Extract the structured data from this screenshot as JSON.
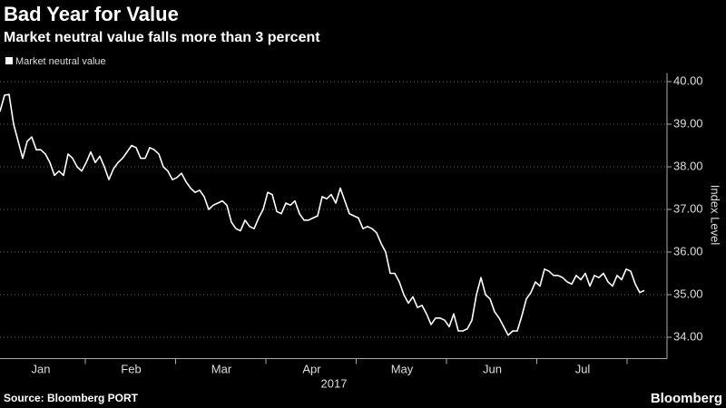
{
  "chart_data": {
    "type": "line",
    "title": "Bad Year for Value",
    "subtitle": "Market neutral value falls more than 3 percent",
    "y_label": "Index Level",
    "x_label": "2017",
    "xtick_labels": [
      "Jan",
      "Feb",
      "Mar",
      "Apr",
      "May",
      "Jun",
      "Jul"
    ],
    "source": "Source: Bloomberg PORT",
    "brand": "Bloomberg",
    "ylim": [
      33.5,
      40.2
    ],
    "yticks": [
      {
        "value": 34,
        "label": "34.00"
      },
      {
        "value": 35,
        "label": "35.00"
      },
      {
        "value": 36,
        "label": "36.00"
      },
      {
        "value": 37,
        "label": "37.00"
      },
      {
        "value": 38,
        "label": "38.00"
      },
      {
        "value": 39,
        "label": "39.00"
      },
      {
        "value": 40,
        "label": "40.00"
      }
    ],
    "grid": true,
    "series": [
      {
        "name": "Market neutral value",
        "color": "#ffffff",
        "values": [
          39.3,
          39.68,
          39.7,
          39.0,
          38.6,
          38.2,
          38.6,
          38.7,
          38.4,
          38.4,
          38.3,
          38.1,
          37.8,
          37.9,
          37.8,
          38.3,
          38.2,
          38.0,
          37.9,
          38.1,
          38.35,
          38.1,
          38.25,
          38.0,
          37.7,
          37.95,
          38.1,
          38.2,
          38.35,
          38.5,
          38.45,
          38.2,
          38.2,
          38.45,
          38.4,
          38.3,
          38.0,
          37.9,
          37.7,
          37.75,
          37.85,
          37.65,
          37.5,
          37.4,
          37.45,
          37.3,
          37.0,
          37.1,
          37.15,
          37.2,
          37.1,
          36.7,
          36.55,
          36.5,
          36.75,
          36.6,
          36.55,
          36.8,
          37.0,
          37.4,
          37.35,
          36.95,
          36.9,
          37.15,
          37.1,
          37.2,
          36.9,
          36.75,
          36.75,
          36.8,
          36.85,
          37.3,
          37.25,
          37.35,
          37.15,
          37.5,
          37.2,
          36.9,
          36.85,
          36.8,
          36.55,
          36.6,
          36.55,
          36.45,
          36.2,
          36.0,
          35.5,
          35.5,
          35.3,
          35.0,
          34.8,
          34.95,
          34.7,
          34.75,
          34.55,
          34.3,
          34.45,
          34.45,
          34.4,
          34.25,
          34.55,
          34.15,
          34.15,
          34.2,
          34.4,
          35.0,
          35.4,
          35.0,
          34.9,
          34.6,
          34.45,
          34.25,
          34.05,
          34.15,
          34.15,
          34.5,
          34.9,
          35.05,
          35.3,
          35.2,
          35.6,
          35.55,
          35.45,
          35.45,
          35.4,
          35.3,
          35.25,
          35.45,
          35.35,
          35.5,
          35.2,
          35.45,
          35.4,
          35.5,
          35.3,
          35.2,
          35.45,
          35.35,
          35.6,
          35.55,
          35.25,
          35.05,
          35.1
        ]
      }
    ]
  }
}
